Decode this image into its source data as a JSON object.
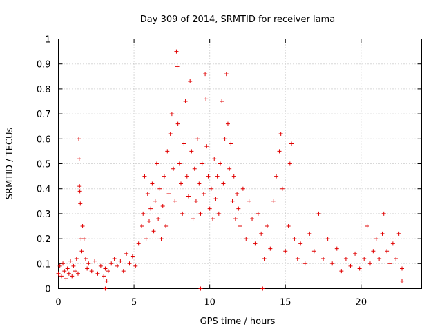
{
  "chart_data": {
    "type": "scatter",
    "title": "Day 309 of 2014, SRMTID for receiver lama",
    "xlabel": "GPS time / hours",
    "ylabel": "SRMTID / TECUs",
    "xlim": [
      0,
      24
    ],
    "ylim": [
      0,
      1
    ],
    "xticks": [
      0,
      5,
      10,
      15,
      20
    ],
    "xtick_labels": [
      "0",
      "5",
      "10",
      "15",
      "20"
    ],
    "yticks": [
      0,
      0.1,
      0.2,
      0.3,
      0.4,
      0.5,
      0.6,
      0.7,
      0.8,
      0.9,
      1
    ],
    "ytick_labels": [
      "0",
      "0.1",
      "0.2",
      "0.3",
      "0.4",
      "0.5",
      "0.6",
      "0.7",
      "0.8",
      "0.9",
      "1"
    ],
    "grid": true,
    "marker": "+",
    "color": "#e00000",
    "series": [
      {
        "name": "SRMTID",
        "points": [
          [
            0.0,
            0.06
          ],
          [
            0.1,
            0.09
          ],
          [
            0.2,
            0.05
          ],
          [
            0.3,
            0.1
          ],
          [
            0.4,
            0.07
          ],
          [
            0.5,
            0.04
          ],
          [
            0.6,
            0.08
          ],
          [
            0.7,
            0.06
          ],
          [
            0.8,
            0.11
          ],
          [
            0.9,
            0.05
          ],
          [
            1.0,
            0.09
          ],
          [
            1.1,
            0.07
          ],
          [
            1.2,
            0.12
          ],
          [
            1.3,
            0.06
          ],
          [
            1.35,
            0.6
          ],
          [
            1.38,
            0.52
          ],
          [
            1.4,
            0.41
          ],
          [
            1.42,
            0.39
          ],
          [
            1.45,
            0.34
          ],
          [
            1.5,
            0.2
          ],
          [
            1.55,
            0.15
          ],
          [
            1.6,
            0.25
          ],
          [
            1.7,
            0.2
          ],
          [
            1.8,
            0.12
          ],
          [
            1.9,
            0.08
          ],
          [
            2.0,
            0.1
          ],
          [
            2.2,
            0.07
          ],
          [
            2.4,
            0.11
          ],
          [
            2.6,
            0.06
          ],
          [
            2.8,
            0.09
          ],
          [
            3.0,
            0.05
          ],
          [
            3.1,
            0.08
          ],
          [
            3.2,
            0.03
          ],
          [
            3.3,
            0.07
          ],
          [
            3.5,
            0.1
          ],
          [
            3.7,
            0.12
          ],
          [
            3.9,
            0.09
          ],
          [
            4.1,
            0.11
          ],
          [
            4.3,
            0.07
          ],
          [
            4.5,
            0.14
          ],
          [
            4.7,
            0.1
          ],
          [
            4.9,
            0.13
          ],
          [
            5.1,
            0.09
          ],
          [
            5.3,
            0.18
          ],
          [
            5.5,
            0.25
          ],
          [
            5.6,
            0.3
          ],
          [
            5.7,
            0.45
          ],
          [
            5.8,
            0.2
          ],
          [
            5.9,
            0.38
          ],
          [
            6.0,
            0.27
          ],
          [
            6.1,
            0.32
          ],
          [
            6.2,
            0.42
          ],
          [
            6.3,
            0.23
          ],
          [
            6.4,
            0.35
          ],
          [
            6.5,
            0.5
          ],
          [
            6.6,
            0.28
          ],
          [
            6.7,
            0.4
          ],
          [
            6.8,
            0.2
          ],
          [
            6.9,
            0.33
          ],
          [
            7.0,
            0.45
          ],
          [
            7.1,
            0.25
          ],
          [
            7.2,
            0.55
          ],
          [
            7.3,
            0.38
          ],
          [
            7.4,
            0.62
          ],
          [
            7.5,
            0.7
          ],
          [
            7.6,
            0.48
          ],
          [
            7.7,
            0.35
          ],
          [
            7.8,
            0.95
          ],
          [
            7.85,
            0.89
          ],
          [
            7.9,
            0.66
          ],
          [
            8.0,
            0.5
          ],
          [
            8.1,
            0.42
          ],
          [
            8.2,
            0.3
          ],
          [
            8.3,
            0.58
          ],
          [
            8.4,
            0.75
          ],
          [
            8.5,
            0.45
          ],
          [
            8.6,
            0.37
          ],
          [
            8.7,
            0.83
          ],
          [
            8.8,
            0.55
          ],
          [
            8.9,
            0.28
          ],
          [
            9.0,
            0.48
          ],
          [
            9.1,
            0.35
          ],
          [
            9.2,
            0.6
          ],
          [
            9.3,
            0.42
          ],
          [
            9.4,
            0.3
          ],
          [
            9.5,
            0.5
          ],
          [
            9.6,
            0.38
          ],
          [
            9.7,
            0.86
          ],
          [
            9.75,
            0.76
          ],
          [
            9.8,
            0.57
          ],
          [
            9.9,
            0.45
          ],
          [
            10.0,
            0.32
          ],
          [
            10.1,
            0.4
          ],
          [
            10.2,
            0.28
          ],
          [
            10.3,
            0.52
          ],
          [
            10.4,
            0.36
          ],
          [
            10.5,
            0.45
          ],
          [
            10.6,
            0.3
          ],
          [
            10.7,
            0.5
          ],
          [
            10.8,
            0.75
          ],
          [
            10.9,
            0.42
          ],
          [
            11.0,
            0.6
          ],
          [
            11.1,
            0.86
          ],
          [
            11.2,
            0.66
          ],
          [
            11.3,
            0.48
          ],
          [
            11.4,
            0.58
          ],
          [
            11.5,
            0.35
          ],
          [
            11.6,
            0.45
          ],
          [
            11.7,
            0.28
          ],
          [
            11.8,
            0.38
          ],
          [
            11.9,
            0.32
          ],
          [
            12.0,
            0.25
          ],
          [
            12.2,
            0.4
          ],
          [
            12.4,
            0.2
          ],
          [
            12.6,
            0.35
          ],
          [
            12.8,
            0.28
          ],
          [
            13.0,
            0.18
          ],
          [
            13.2,
            0.3
          ],
          [
            13.4,
            0.22
          ],
          [
            13.6,
            0.12
          ],
          [
            13.8,
            0.25
          ],
          [
            14.0,
            0.16
          ],
          [
            14.2,
            0.35
          ],
          [
            14.4,
            0.45
          ],
          [
            14.6,
            0.55
          ],
          [
            14.7,
            0.62
          ],
          [
            14.8,
            0.4
          ],
          [
            15.0,
            0.15
          ],
          [
            15.2,
            0.25
          ],
          [
            15.3,
            0.5
          ],
          [
            15.4,
            0.58
          ],
          [
            15.6,
            0.2
          ],
          [
            15.8,
            0.12
          ],
          [
            16.0,
            0.18
          ],
          [
            16.3,
            0.1
          ],
          [
            16.6,
            0.22
          ],
          [
            16.9,
            0.15
          ],
          [
            17.2,
            0.3
          ],
          [
            17.5,
            0.12
          ],
          [
            17.8,
            0.2
          ],
          [
            18.1,
            0.1
          ],
          [
            18.4,
            0.16
          ],
          [
            18.7,
            0.07
          ],
          [
            19.0,
            0.12
          ],
          [
            19.3,
            0.09
          ],
          [
            19.6,
            0.14
          ],
          [
            19.9,
            0.08
          ],
          [
            20.2,
            0.12
          ],
          [
            20.4,
            0.25
          ],
          [
            20.6,
            0.1
          ],
          [
            20.8,
            0.15
          ],
          [
            21.0,
            0.2
          ],
          [
            21.2,
            0.12
          ],
          [
            21.4,
            0.22
          ],
          [
            21.5,
            0.3
          ],
          [
            21.7,
            0.15
          ],
          [
            21.9,
            0.1
          ],
          [
            22.1,
            0.18
          ],
          [
            22.3,
            0.12
          ],
          [
            22.5,
            0.22
          ],
          [
            22.7,
            0.08
          ],
          [
            22.7,
            0.03
          ],
          [
            9.4,
            0.0
          ],
          [
            13.5,
            0.0
          ],
          [
            3.1,
            0.0
          ]
        ]
      }
    ]
  }
}
